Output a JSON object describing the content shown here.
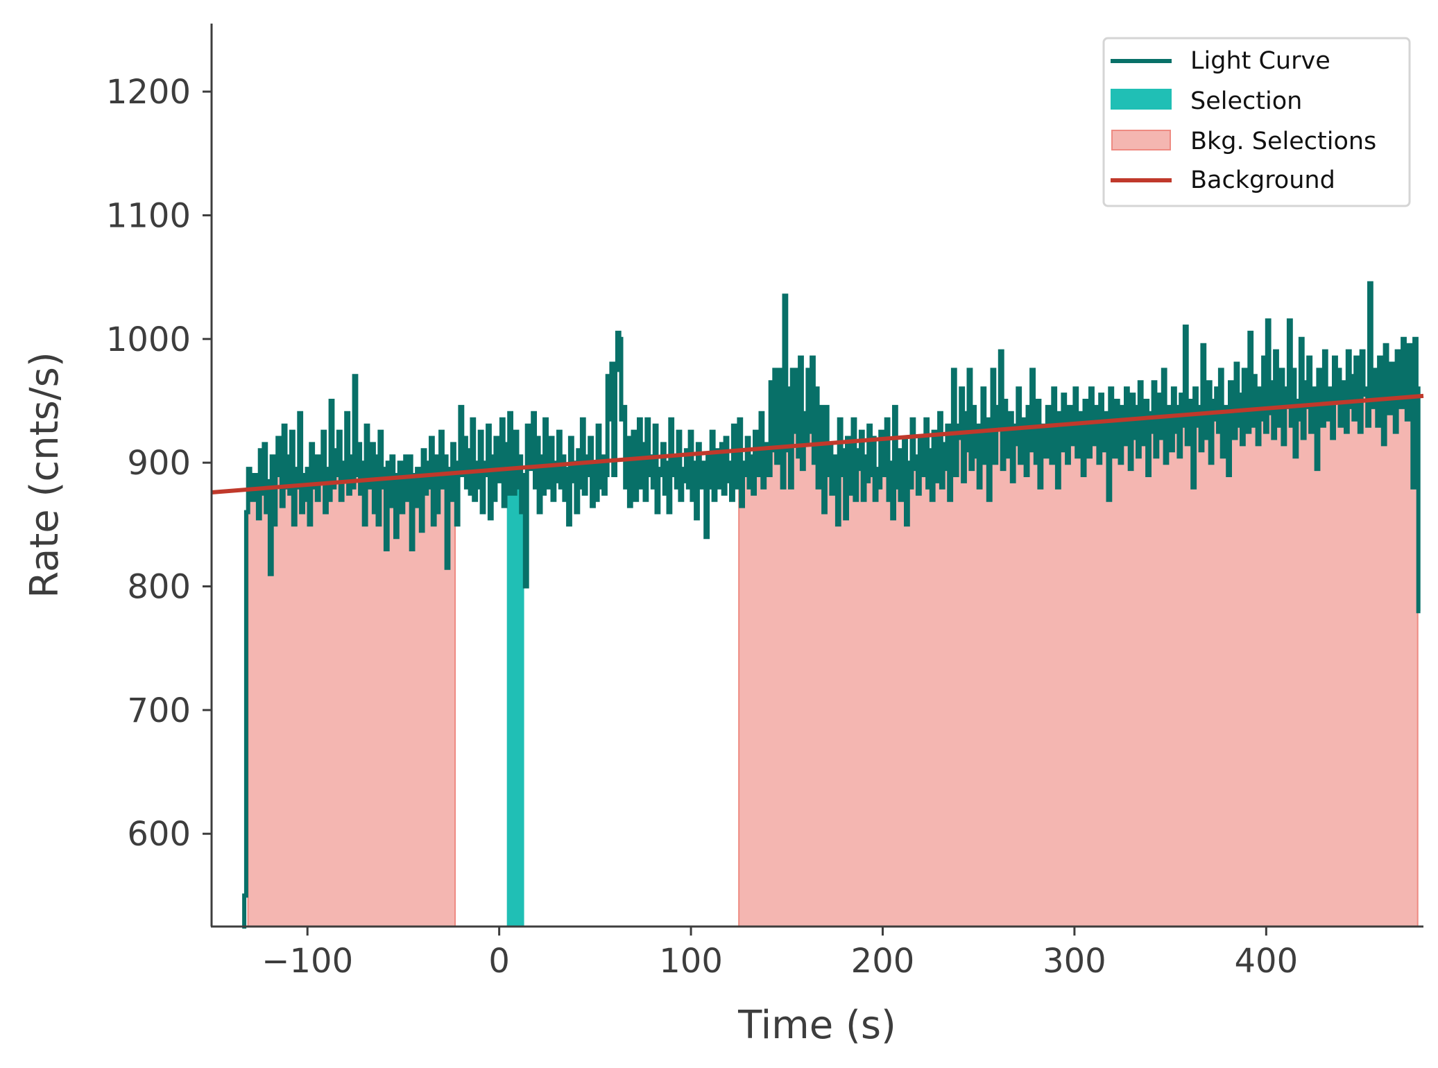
{
  "chart_data": {
    "type": "line",
    "xlabel": "Time (s)",
    "ylabel": "Rate (cnts/s)",
    "xlim": [
      -150,
      482
    ],
    "ylim": [
      525,
      1255
    ],
    "x_ticks": [
      -100,
      0,
      100,
      200,
      300,
      400
    ],
    "x_tick_labels": [
      "−100",
      "0",
      "100",
      "200",
      "300",
      "400"
    ],
    "y_ticks": [
      600,
      700,
      800,
      900,
      1000,
      1100,
      1200
    ],
    "y_tick_labels": [
      "600",
      "700",
      "800",
      "900",
      "1000",
      "1100",
      "1200"
    ],
    "grid": false,
    "legend_position": "top-right",
    "legend": [
      "Light Curve",
      "Selection",
      "Bkg. Selections",
      "Background"
    ],
    "colors": {
      "light_curve": "#087068",
      "selection": "#20bfb5",
      "bkg_selection_fill": "#f4b6b1",
      "bkg_selection_edge": "#ee8a82",
      "background": "#c0392b",
      "axis": "#3d3d3d"
    },
    "light_curve": {
      "name": "Light Curve",
      "x_start": -134,
      "bin_width": 1.024,
      "values": [
        520,
        550,
        860,
        895,
        880,
        870,
        890,
        880,
        855,
        910,
        875,
        915,
        860,
        885,
        810,
        905,
        850,
        890,
        920,
        895,
        865,
        930,
        905,
        880,
        875,
        925,
        850,
        895,
        880,
        940,
        860,
        890,
        870,
        895,
        850,
        915,
        880,
        905,
        870,
        905,
        885,
        925,
        860,
        895,
        870,
        950,
        880,
        910,
        890,
        925,
        870,
        900,
        885,
        940,
        875,
        905,
        880,
        970,
        890,
        915,
        875,
        900,
        850,
        930,
        895,
        880,
        915,
        860,
        905,
        850,
        925,
        880,
        895,
        830,
        900,
        865,
        905,
        890,
        840,
        885,
        900,
        860,
        880,
        905,
        870,
        905,
        830,
        890,
        865,
        895,
        880,
        845,
        910,
        875,
        900,
        880,
        920,
        850,
        905,
        860,
        890,
        925,
        880,
        905,
        815,
        895,
        870,
        915,
        880,
        850,
        900,
        945,
        890,
        920,
        880,
        910,
        875,
        935,
        870,
        900,
        880,
        925,
        860,
        900,
        890,
        930,
        855,
        905,
        870,
        920,
        885,
        900,
        935,
        865,
        915,
        875,
        940,
        900,
        875,
        925,
        880,
        905,
        860,
        890,
        800,
        930,
        895,
        910,
        940,
        880,
        920,
        860,
        905,
        875,
        935,
        890,
        880,
        920,
        870,
        900,
        885,
        925,
        880,
        905,
        870,
        895,
        850,
        920,
        885,
        900,
        860,
        910,
        880,
        935,
        875,
        905,
        890,
        920,
        865,
        900,
        870,
        930,
        880,
        905,
        875,
        890,
        970,
        935,
        980,
        890,
        975,
        1005,
        1000,
        935,
        945,
        880,
        920,
        865,
        880,
        925,
        870,
        905,
        935,
        880,
        915,
        870,
        935,
        890,
        905,
        880,
        930,
        860,
        895,
        890,
        915,
        875,
        900,
        860,
        935,
        890,
        905,
        880,
        925,
        870,
        895,
        885,
        910,
        880,
        925,
        870,
        900,
        855,
        915,
        880,
        900,
        890,
        840,
        905,
        880,
        925,
        870,
        910,
        895,
        880,
        915,
        875,
        920,
        885,
        900,
        870,
        930,
        890,
        880,
        935,
        865,
        900,
        890,
        920,
        880,
        905,
        875,
        925,
        890,
        900,
        940,
        880,
        915,
        905,
        890,
        965,
        910,
        975,
        900,
        940,
        975,
        880,
        1035,
        910,
        960,
        880,
        975,
        925,
        975,
        905,
        985,
        895,
        940,
        915,
        975,
        925,
        985,
        900,
        960,
        880,
        945,
        905,
        860,
        945,
        890,
        915,
        875,
        900,
        905,
        850,
        935,
        890,
        910,
        855,
        920,
        875,
        900,
        935,
        870,
        910,
        895,
        925,
        870,
        905,
        885,
        930,
        890,
        920,
        870,
        895,
        880,
        925,
        910,
        890,
        935,
        870,
        900,
        855,
        945,
        880,
        910,
        870,
        895,
        920,
        850,
        900,
        880,
        935,
        895,
        905,
        875,
        920,
        890,
        900,
        935,
        880,
        910,
        870,
        925,
        885,
        905,
        940,
        880,
        915,
        895,
        930,
        870,
        905,
        975,
        890,
        930,
        920,
        960,
        885,
        940,
        910,
        975,
        895,
        945,
        905,
        930,
        880,
        920,
        960,
        900,
        935,
        870,
        910,
        975,
        900,
        945,
        930,
        990,
        895,
        950,
        920,
        905,
        940,
        885,
        930,
        915,
        960,
        900,
        935,
        920,
        890,
        945,
        910,
        975,
        930,
        900,
        950,
        880,
        920,
        930,
        905,
        945,
        920,
        900,
        960,
        935,
        880,
        940,
        910,
        955,
        925,
        900,
        945,
        930,
        915,
        960,
        905,
        940,
        925,
        890,
        950,
        935,
        905,
        960,
        930,
        915,
        945,
        900,
        955,
        925,
        910,
        940,
        870,
        960,
        935,
        905,
        950,
        925,
        900,
        945,
        915,
        960,
        930,
        895,
        955,
        920,
        945,
        905,
        965,
        930,
        915,
        950,
        890,
        940,
        925,
        965,
        905,
        955,
        930,
        920,
        975,
        900,
        945,
        935,
        910,
        960,
        925,
        945,
        905,
        955,
        930,
        1010,
        915,
        950,
        925,
        880,
        960,
        930,
        945,
        910,
        995,
        935,
        920,
        965,
        900,
        950,
        935,
        960,
        925,
        975,
        905,
        945,
        930,
        890,
        965,
        940,
        920,
        980,
        930,
        955,
        915,
        975,
        945,
        925,
        1005,
        930,
        970,
        945,
        915,
        960,
        935,
        985,
        925,
        1015,
        940,
        965,
        920,
        990,
        950,
        930,
        975,
        915,
        960,
        945,
        1015,
        930,
        975,
        905,
        950,
        935,
        1000,
        920,
        965,
        945,
        985,
        925,
        960,
        940,
        895,
        975,
        950,
        930,
        990,
        935,
        960,
        945,
        920,
        985,
        950,
        975,
        930,
        965,
        955,
        925,
        990,
        945,
        970,
        935,
        985,
        950,
        925,
        990,
        955,
        960,
        930,
        1045,
        945,
        975,
        950,
        930,
        985,
        955,
        915,
        995,
        960,
        940,
        980,
        950,
        925,
        990,
        960,
        945,
        1000,
        965,
        935,
        995,
        955,
        880,
        1000,
        960,
        780
      ]
    },
    "selection": {
      "name": "Selection",
      "x_range": [
        4,
        13
      ]
    },
    "bkg_selections": {
      "name": "Bkg. Selections",
      "ranges": [
        [
          -131,
          -23
        ],
        [
          125,
          479
        ]
      ]
    },
    "background": {
      "name": "Background",
      "points": [
        [
          -150,
          876
        ],
        [
          482,
          954
        ]
      ]
    }
  }
}
